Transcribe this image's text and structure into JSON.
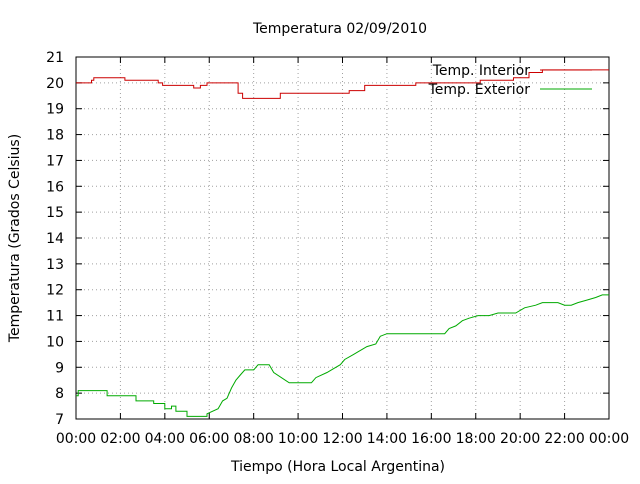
{
  "chart_data": {
    "type": "line",
    "title": "Temperatura 02/09/2010",
    "xlabel": "Tiempo (Hora Local Argentina)",
    "ylabel": "Temperatura (Grados Celsius)",
    "xlim": [
      0,
      24
    ],
    "ylim": [
      7,
      21
    ],
    "x_ticks": [
      0,
      2,
      4,
      6,
      8,
      10,
      12,
      14,
      16,
      18,
      20,
      22,
      24
    ],
    "x_tick_labels": [
      "00:00",
      "02:00",
      "04:00",
      "06:00",
      "08:00",
      "10:00",
      "12:00",
      "14:00",
      "16:00",
      "18:00",
      "20:00",
      "22:00",
      "00:00"
    ],
    "y_ticks": [
      7,
      8,
      9,
      10,
      11,
      12,
      13,
      14,
      15,
      16,
      17,
      18,
      19,
      20,
      21
    ],
    "grid": true,
    "legend_position": "top-right",
    "series": [
      {
        "name": "Temp. Interior",
        "color": "#cc0000",
        "x": [
          0,
          0.7,
          0.7,
          0.8,
          0.8,
          2.2,
          2.2,
          3.7,
          3.7,
          3.9,
          3.9,
          5.3,
          5.3,
          5.6,
          5.6,
          5.9,
          5.9,
          7.3,
          7.3,
          7.5,
          7.5,
          9.2,
          9.2,
          12.3,
          12.3,
          13.0,
          13.0,
          15.3,
          15.3,
          18.2,
          18.2,
          19.7,
          19.7,
          20.4,
          20.4,
          21.0,
          21.0,
          24.0
        ],
        "y": [
          20.0,
          20.0,
          20.1,
          20.1,
          20.2,
          20.2,
          20.1,
          20.1,
          20.0,
          20.0,
          19.9,
          19.9,
          19.8,
          19.8,
          19.9,
          19.9,
          20.0,
          20.0,
          19.6,
          19.6,
          19.4,
          19.4,
          19.6,
          19.6,
          19.7,
          19.7,
          19.9,
          19.9,
          20.0,
          20.0,
          20.1,
          20.1,
          20.2,
          20.2,
          20.4,
          20.4,
          20.5,
          20.5
        ]
      },
      {
        "name": "Temp. Exterior",
        "color": "#00aa00",
        "x": [
          0,
          0.1,
          0.1,
          1.4,
          1.4,
          2.7,
          2.7,
          3.5,
          3.5,
          4.0,
          4.0,
          4.3,
          4.3,
          4.5,
          4.5,
          5.0,
          5.0,
          5.5,
          5.5,
          5.9,
          5.9,
          6.4,
          6.6,
          6.8,
          7.0,
          7.2,
          7.4,
          7.6,
          7.8,
          8.0,
          8.2,
          8.7,
          8.9,
          9.6,
          9.8,
          10.6,
          10.8,
          11.3,
          11.5,
          11.9,
          12.1,
          12.5,
          12.7,
          12.9,
          13.1,
          13.5,
          13.7,
          14.0,
          14.3,
          16.6,
          16.8,
          17.1,
          17.4,
          17.7,
          18.1,
          18.6,
          19.0,
          19.8,
          20.2,
          20.7,
          21.0,
          21.7,
          22.0,
          22.3,
          22.6,
          23.0,
          23.4,
          23.7,
          24.0
        ],
        "y": [
          7.9,
          7.9,
          8.1,
          8.1,
          7.9,
          7.9,
          7.7,
          7.7,
          7.6,
          7.6,
          7.4,
          7.4,
          7.5,
          7.5,
          7.3,
          7.3,
          7.1,
          7.1,
          7.1,
          7.1,
          7.2,
          7.4,
          7.7,
          7.8,
          8.2,
          8.5,
          8.7,
          8.9,
          8.9,
          8.9,
          9.1,
          9.1,
          8.8,
          8.4,
          8.4,
          8.4,
          8.6,
          8.8,
          8.9,
          9.1,
          9.3,
          9.5,
          9.6,
          9.7,
          9.8,
          9.9,
          10.2,
          10.3,
          10.3,
          10.3,
          10.5,
          10.6,
          10.8,
          10.9,
          11.0,
          11.0,
          11.1,
          11.1,
          11.3,
          11.4,
          11.5,
          11.5,
          11.4,
          11.4,
          11.5,
          11.6,
          11.7,
          11.8,
          11.8
        ]
      }
    ]
  }
}
